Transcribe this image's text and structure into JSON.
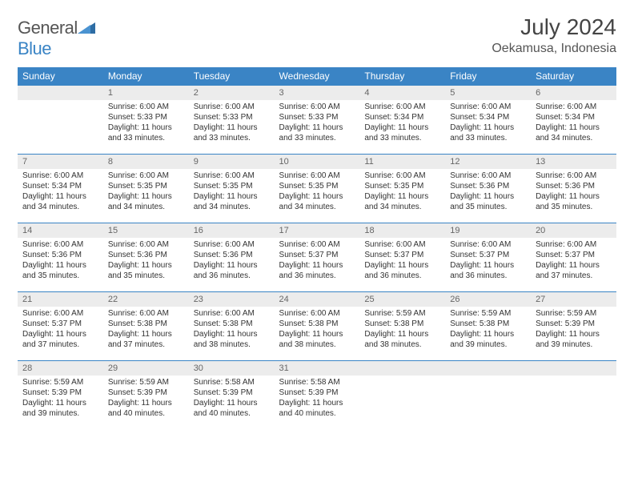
{
  "logo": {
    "word1": "General",
    "word2": "Blue"
  },
  "title": "July 2024",
  "location": "Oekamusa, Indonesia",
  "colors": {
    "header_bg": "#3a84c5",
    "header_fg": "#ffffff",
    "daynum_bg": "#ececec",
    "border": "#3a84c5",
    "text": "#333333"
  },
  "dayNames": [
    "Sunday",
    "Monday",
    "Tuesday",
    "Wednesday",
    "Thursday",
    "Friday",
    "Saturday"
  ],
  "firstDayOffset": 1,
  "daysInMonth": 31,
  "days": {
    "1": {
      "sunrise": "6:00 AM",
      "sunset": "5:33 PM",
      "daylight": "11 hours and 33 minutes."
    },
    "2": {
      "sunrise": "6:00 AM",
      "sunset": "5:33 PM",
      "daylight": "11 hours and 33 minutes."
    },
    "3": {
      "sunrise": "6:00 AM",
      "sunset": "5:33 PM",
      "daylight": "11 hours and 33 minutes."
    },
    "4": {
      "sunrise": "6:00 AM",
      "sunset": "5:34 PM",
      "daylight": "11 hours and 33 minutes."
    },
    "5": {
      "sunrise": "6:00 AM",
      "sunset": "5:34 PM",
      "daylight": "11 hours and 33 minutes."
    },
    "6": {
      "sunrise": "6:00 AM",
      "sunset": "5:34 PM",
      "daylight": "11 hours and 34 minutes."
    },
    "7": {
      "sunrise": "6:00 AM",
      "sunset": "5:34 PM",
      "daylight": "11 hours and 34 minutes."
    },
    "8": {
      "sunrise": "6:00 AM",
      "sunset": "5:35 PM",
      "daylight": "11 hours and 34 minutes."
    },
    "9": {
      "sunrise": "6:00 AM",
      "sunset": "5:35 PM",
      "daylight": "11 hours and 34 minutes."
    },
    "10": {
      "sunrise": "6:00 AM",
      "sunset": "5:35 PM",
      "daylight": "11 hours and 34 minutes."
    },
    "11": {
      "sunrise": "6:00 AM",
      "sunset": "5:35 PM",
      "daylight": "11 hours and 34 minutes."
    },
    "12": {
      "sunrise": "6:00 AM",
      "sunset": "5:36 PM",
      "daylight": "11 hours and 35 minutes."
    },
    "13": {
      "sunrise": "6:00 AM",
      "sunset": "5:36 PM",
      "daylight": "11 hours and 35 minutes."
    },
    "14": {
      "sunrise": "6:00 AM",
      "sunset": "5:36 PM",
      "daylight": "11 hours and 35 minutes."
    },
    "15": {
      "sunrise": "6:00 AM",
      "sunset": "5:36 PM",
      "daylight": "11 hours and 35 minutes."
    },
    "16": {
      "sunrise": "6:00 AM",
      "sunset": "5:36 PM",
      "daylight": "11 hours and 36 minutes."
    },
    "17": {
      "sunrise": "6:00 AM",
      "sunset": "5:37 PM",
      "daylight": "11 hours and 36 minutes."
    },
    "18": {
      "sunrise": "6:00 AM",
      "sunset": "5:37 PM",
      "daylight": "11 hours and 36 minutes."
    },
    "19": {
      "sunrise": "6:00 AM",
      "sunset": "5:37 PM",
      "daylight": "11 hours and 36 minutes."
    },
    "20": {
      "sunrise": "6:00 AM",
      "sunset": "5:37 PM",
      "daylight": "11 hours and 37 minutes."
    },
    "21": {
      "sunrise": "6:00 AM",
      "sunset": "5:37 PM",
      "daylight": "11 hours and 37 minutes."
    },
    "22": {
      "sunrise": "6:00 AM",
      "sunset": "5:38 PM",
      "daylight": "11 hours and 37 minutes."
    },
    "23": {
      "sunrise": "6:00 AM",
      "sunset": "5:38 PM",
      "daylight": "11 hours and 38 minutes."
    },
    "24": {
      "sunrise": "6:00 AM",
      "sunset": "5:38 PM",
      "daylight": "11 hours and 38 minutes."
    },
    "25": {
      "sunrise": "5:59 AM",
      "sunset": "5:38 PM",
      "daylight": "11 hours and 38 minutes."
    },
    "26": {
      "sunrise": "5:59 AM",
      "sunset": "5:38 PM",
      "daylight": "11 hours and 39 minutes."
    },
    "27": {
      "sunrise": "5:59 AM",
      "sunset": "5:39 PM",
      "daylight": "11 hours and 39 minutes."
    },
    "28": {
      "sunrise": "5:59 AM",
      "sunset": "5:39 PM",
      "daylight": "11 hours and 39 minutes."
    },
    "29": {
      "sunrise": "5:59 AM",
      "sunset": "5:39 PM",
      "daylight": "11 hours and 40 minutes."
    },
    "30": {
      "sunrise": "5:58 AM",
      "sunset": "5:39 PM",
      "daylight": "11 hours and 40 minutes."
    },
    "31": {
      "sunrise": "5:58 AM",
      "sunset": "5:39 PM",
      "daylight": "11 hours and 40 minutes."
    }
  },
  "labels": {
    "sunrise": "Sunrise:",
    "sunset": "Sunset:",
    "daylight": "Daylight:"
  }
}
